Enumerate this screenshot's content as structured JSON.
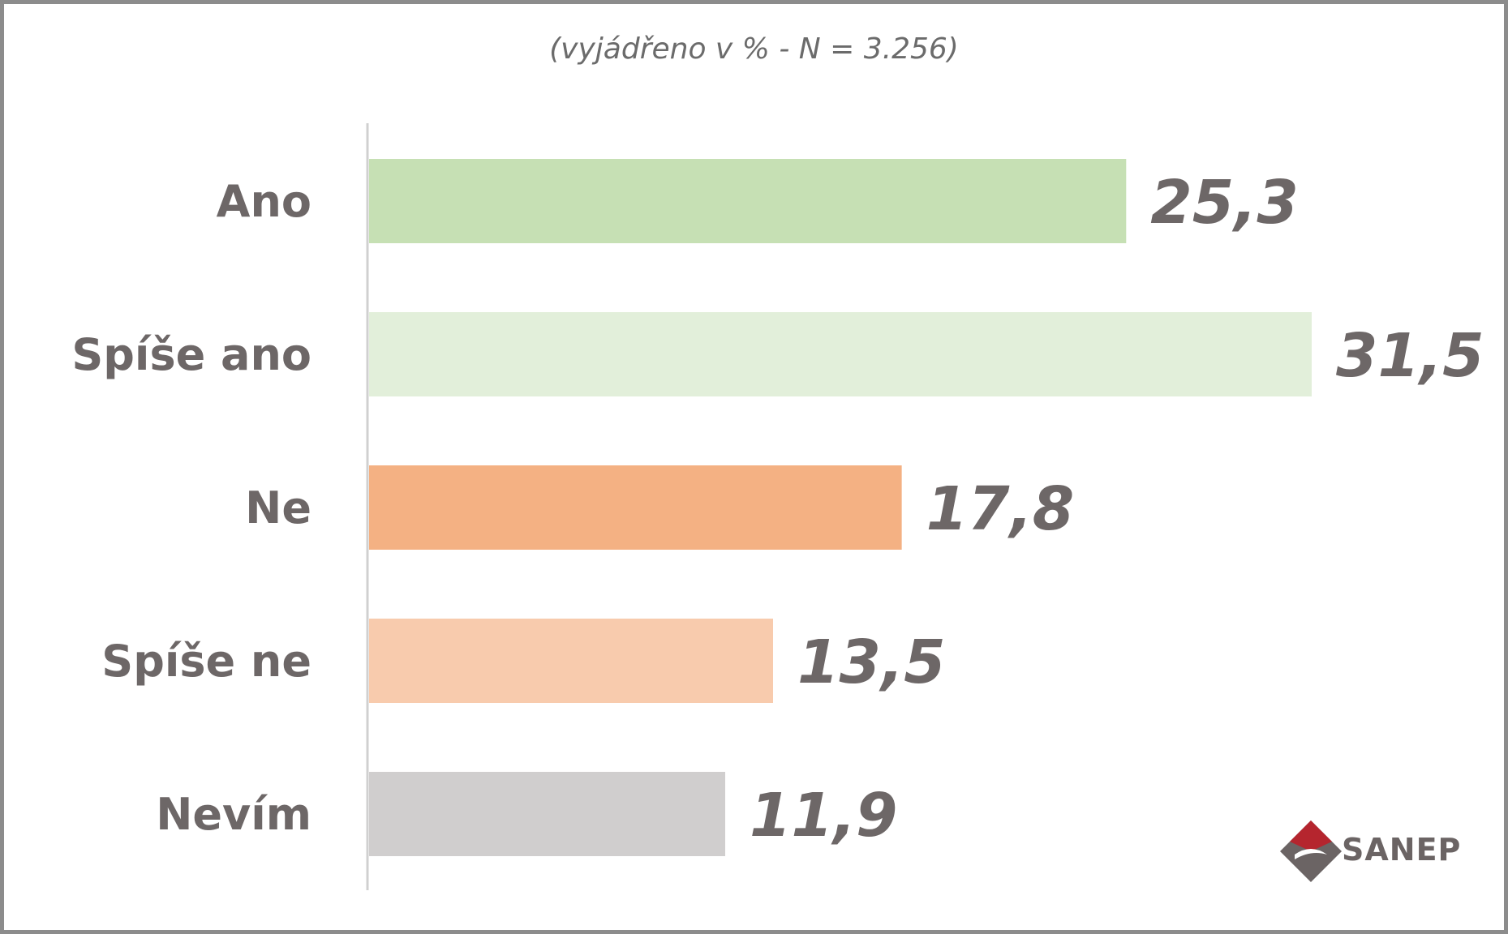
{
  "chart_data": {
    "type": "bar",
    "orientation": "horizontal",
    "subtitle": "(vyjádřeno v % - N = 3.256)",
    "categories": [
      "Ano",
      "Spíše ano",
      "Ne",
      "Spíše ne",
      "Nevím"
    ],
    "values": [
      25.3,
      31.5,
      17.8,
      13.5,
      11.9
    ],
    "value_labels": [
      "25,3",
      "31,5",
      "17,8",
      "13,5",
      "11,9"
    ],
    "colors": [
      "#c6e0b4",
      "#e2efda",
      "#f4b183",
      "#f8cbad",
      "#d0cece"
    ],
    "xlim": [
      0,
      31.5
    ],
    "grid": false,
    "legend": "none"
  },
  "logo": {
    "text": "SANEP",
    "colors": {
      "red": "#b5252e",
      "gray": "#6b6464"
    }
  },
  "colors": {
    "frame": "#8c8c8c",
    "text": "#6d6767",
    "axis": "#d0d0d0"
  }
}
